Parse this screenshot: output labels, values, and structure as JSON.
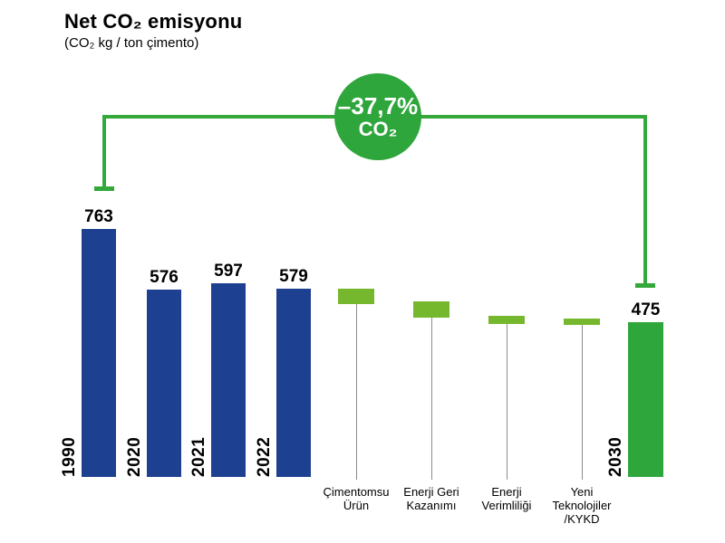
{
  "header": {
    "title": "Net CO₂ emisyonu",
    "subtitle": "(CO₂ kg / ton çimento)"
  },
  "badge": {
    "line1": "–37,7%",
    "line2": "CO₂"
  },
  "colors": {
    "bar_blue": "#1d4091",
    "bar_green": "#2fa63c",
    "segment_green": "#76b82d",
    "bracket_green": "#35a83c",
    "stem_gray": "#8c8c8c",
    "text": "#000000",
    "badge_text": "#ffffff"
  },
  "chart_data": {
    "type": "bar",
    "subtype": "waterfall",
    "title": "Net CO₂ emisyonu",
    "ylabel": "CO₂ kg / ton çimento",
    "ylim": [
      0,
      800
    ],
    "grid": false,
    "legend": false,
    "annotation": {
      "text": "–37,7% CO₂",
      "from_category": "1990",
      "to_category": "2030"
    },
    "bars": [
      {
        "label": "1990",
        "value": 763,
        "color_key": "bar_blue"
      },
      {
        "label": "2020",
        "value": 576,
        "color_key": "bar_blue"
      },
      {
        "label": "2021",
        "value": 597,
        "color_key": "bar_blue"
      },
      {
        "label": "2022",
        "value": 579,
        "color_key": "bar_blue"
      }
    ],
    "reduction_steps": [
      {
        "label": "Çimentomsu\nÜrün",
        "approx_from": 579,
        "approx_to": 532
      },
      {
        "label": "Enerji Geri\nKazanımı",
        "approx_from": 540,
        "approx_to": 490
      },
      {
        "label": "Enerji\nVerimliliği",
        "approx_from": 495,
        "approx_to": 471
      },
      {
        "label": "Yeni\nTeknolojiler\n/KYKD",
        "approx_from": 487,
        "approx_to": 468
      }
    ],
    "final_bar": {
      "label": "2030",
      "value": 475,
      "color_key": "bar_green"
    }
  }
}
